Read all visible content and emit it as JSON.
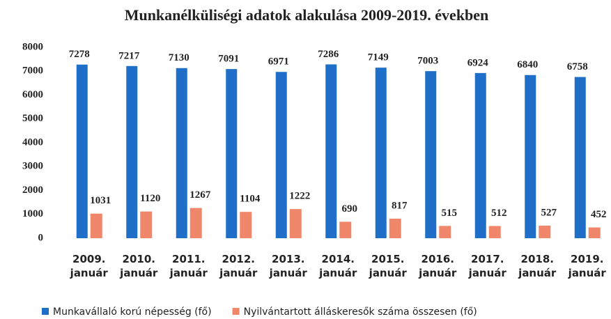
{
  "chart_data": {
    "type": "bar",
    "title": "Munkanélküliségi adatok alakulása 2009-2019. években",
    "categories": [
      "2009. január",
      "2010. január",
      "2011. január",
      "2012. január",
      "2013. január",
      "2014. január",
      "2015. január",
      "2016. január",
      "2017. január",
      "2018. január",
      "2019. január"
    ],
    "series": [
      {
        "name": "Munkavállaló korú népesség (fő)",
        "color": "#1f6fc8",
        "values": [
          7278,
          7217,
          7130,
          7091,
          6971,
          7286,
          7149,
          7003,
          6924,
          6840,
          6758
        ]
      },
      {
        "name": "Nyilvántartott álláskeresők száma összesen (fő)",
        "color": "#f0876a",
        "values": [
          1031,
          1120,
          1267,
          1104,
          1222,
          690,
          817,
          515,
          512,
          527,
          452
        ]
      }
    ],
    "ylim": [
      0,
      8000
    ],
    "yticks": [
      0,
      1000,
      2000,
      3000,
      4000,
      5000,
      6000,
      7000,
      8000
    ],
    "grid": false,
    "legend": "bottom"
  }
}
